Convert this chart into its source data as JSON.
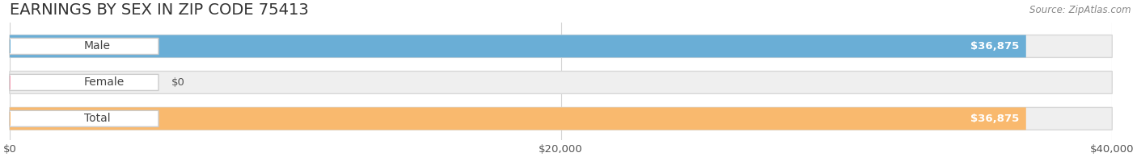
{
  "title": "EARNINGS BY SEX IN ZIP CODE 75413",
  "source": "Source: ZipAtlas.com",
  "categories": [
    "Male",
    "Female",
    "Total"
  ],
  "values": [
    36875,
    0,
    36875
  ],
  "bar_colors": [
    "#6aaed6",
    "#f4a0b5",
    "#f9b96e"
  ],
  "xmax": 40000,
  "xticks": [
    0,
    20000,
    40000
  ],
  "xtick_labels": [
    "$0",
    "$20,000",
    "$40,000"
  ],
  "value_format_prefix": "$",
  "title_fontsize": 14,
  "tick_fontsize": 9.5,
  "source_fontsize": 8.5,
  "background_color": "#ffffff",
  "track_color": "#efefef",
  "track_edge_color": "#d8d8d8",
  "pill_color": "#ffffff",
  "pill_edge_color": "#cccccc",
  "grid_color": "#d0d0d0",
  "value_label_color": "#ffffff",
  "zero_label_color": "#555555",
  "cat_label_color": "#444444"
}
